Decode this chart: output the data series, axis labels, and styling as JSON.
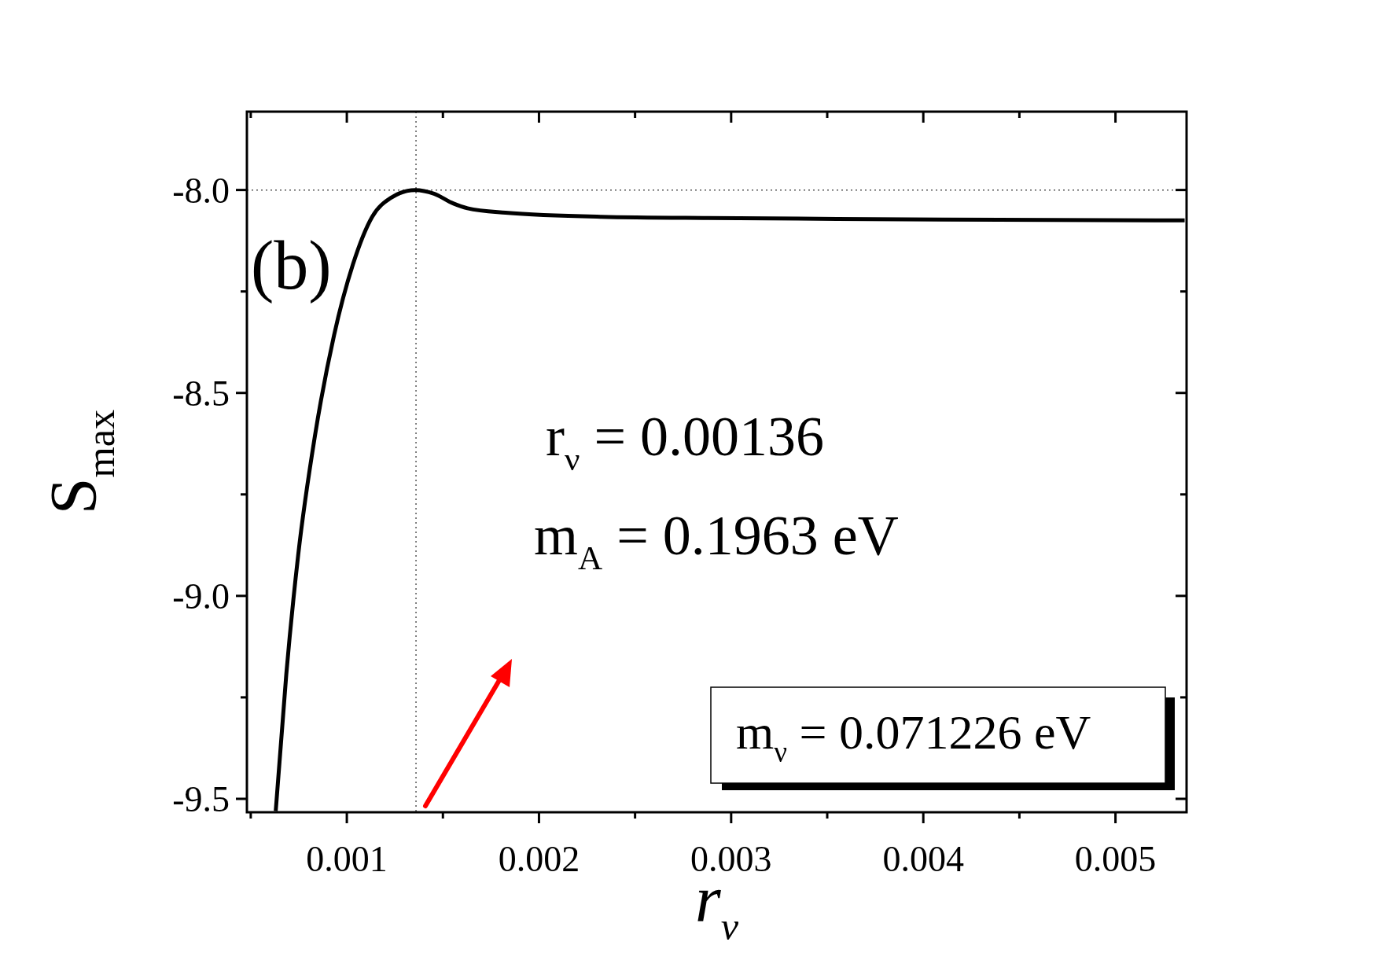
{
  "chart_data": {
    "type": "line",
    "xlabel": "r$_{ν}$",
    "ylabel": "S$_{max}$",
    "xlim": [
      0.00048,
      0.00537
    ],
    "ylim": [
      -9.533,
      -7.807
    ],
    "xticks": [
      {
        "value": 0.0005,
        "label": null
      },
      0.001,
      {
        "value": 0.0015,
        "label": null
      },
      0.002,
      {
        "value": 0.0025,
        "label": null
      },
      0.003,
      {
        "value": 0.0035,
        "label": null
      },
      0.004,
      {
        "value": 0.0045,
        "label": null
      },
      0.005
    ],
    "yticks": [
      {
        "value": -9.5,
        "label": "-9.5"
      },
      {
        "value": -9.25,
        "label": null
      },
      {
        "value": -9.0,
        "label": "-9.0"
      },
      {
        "value": -8.75,
        "label": null
      },
      {
        "value": -8.5,
        "label": "-8.5"
      },
      {
        "value": -8.25,
        "label": null
      },
      {
        "value": -8.0,
        "label": "-8.0"
      }
    ],
    "x": [
      0.00063,
      0.000685,
      0.000747,
      0.000834,
      0.000933,
      0.001032,
      0.001132,
      0.001231,
      0.001355,
      0.001454,
      0.001553,
      0.001628,
      0.001826,
      0.002323,
      0.00288,
      0.0032,
      0.0041,
      0.00536
    ],
    "series": [
      {
        "color": "#000000",
        "values": [
          -9.53,
          -9.193,
          -8.899,
          -8.606,
          -8.359,
          -8.183,
          -8.066,
          -8.019,
          -8.0,
          -8.009,
          -8.033,
          -8.045,
          -8.056,
          -8.066,
          -8.069,
          -8.07,
          -8.073,
          -8.075
        ]
      }
    ],
    "marker": "none",
    "line_style": "solid",
    "grid": false,
    "ref_lines": [
      {
        "axis": "y",
        "value": -8.0,
        "color": "#555555",
        "line_style": "dotted"
      },
      {
        "axis": "x",
        "value": 0.00136,
        "color": "#555555",
        "line_style": "dotted"
      }
    ],
    "annotations": [
      "(b)",
      "r$_{ν}$ = 0.00136",
      "m$_{A}$ = 0.1963 eV",
      "m$_{ν}$ = 0.071226 eV"
    ]
  }
}
